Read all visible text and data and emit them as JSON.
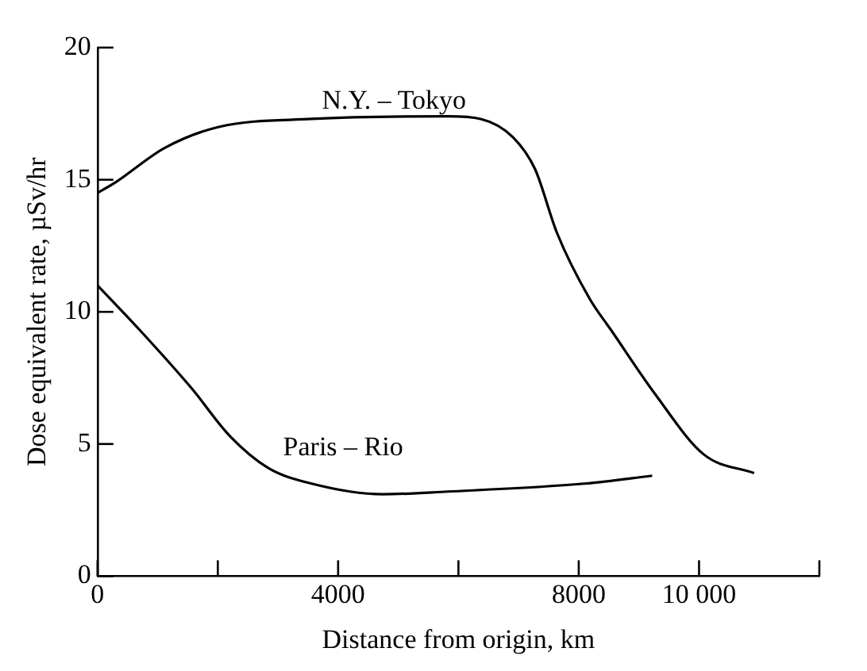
{
  "chart_data": {
    "type": "line",
    "xlabel": "Distance from origin, km",
    "ylabel": "Dose equivalent rate, µSv/hr",
    "xlim": [
      0,
      12000
    ],
    "xticks": [
      0,
      {
        "value": 2000,
        "label": null
      },
      4000,
      {
        "value": 6000,
        "label": null
      },
      8000,
      {
        "value": 10000,
        "label": "10 000"
      },
      {
        "value": 12000,
        "label": null
      }
    ],
    "ylim": [
      0,
      20
    ],
    "yticks": [
      0,
      5,
      10,
      15,
      20
    ],
    "grid": false,
    "legend": false,
    "marker": "none",
    "line_style": "solid",
    "series": [
      {
        "name": "N.Y. – Tokyo",
        "color": "#000000",
        "x": [
          0,
          300,
          1114,
          2019,
          3560,
          5824,
          6370,
          6911,
          7274,
          7636,
          8180,
          8541,
          9266,
          10082,
          10915
        ],
        "values": [
          14.5,
          14.9,
          16.2,
          17.0,
          17.3,
          17.4,
          17.3,
          16.6,
          15.4,
          13.0,
          10.5,
          9.3,
          6.9,
          4.6,
          3.9
        ]
      },
      {
        "name": "Paris – Rio",
        "color": "#000000",
        "x": [
          0,
          707,
          1567,
          2201,
          2835,
          3560,
          4737,
          5824,
          8089,
          9221
        ],
        "values": [
          11.0,
          9.3,
          7.1,
          5.3,
          4.1,
          3.5,
          3.1,
          3.2,
          3.5,
          3.8
        ]
      }
    ]
  }
}
